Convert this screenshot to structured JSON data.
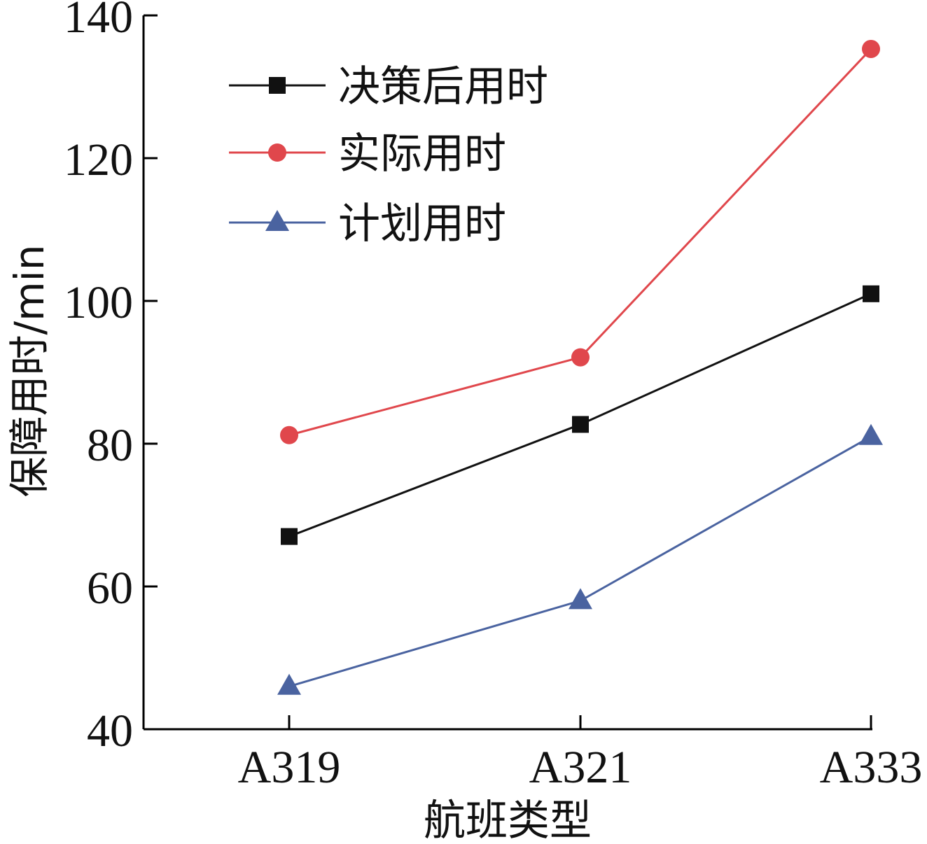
{
  "chart_data": {
    "type": "line",
    "title": "",
    "xlabel": "航班类型",
    "ylabel": "保障用时/min",
    "categories": [
      "A319",
      "A321",
      "A333"
    ],
    "ylim": [
      40,
      140
    ],
    "yticks": [
      40,
      60,
      80,
      100,
      120,
      140
    ],
    "grid": false,
    "legend_position": "top-left",
    "series": [
      {
        "name": "决策后用时",
        "values": [
          67,
          82.7,
          101
        ],
        "color": "#111111",
        "marker": "square"
      },
      {
        "name": "实际用时",
        "values": [
          81.2,
          92.1,
          135.3
        ],
        "color": "#e0474c",
        "marker": "circle"
      },
      {
        "name": "计划用时",
        "values": [
          46,
          58,
          81
        ],
        "color": "#4a63a0",
        "marker": "triangle"
      }
    ]
  }
}
